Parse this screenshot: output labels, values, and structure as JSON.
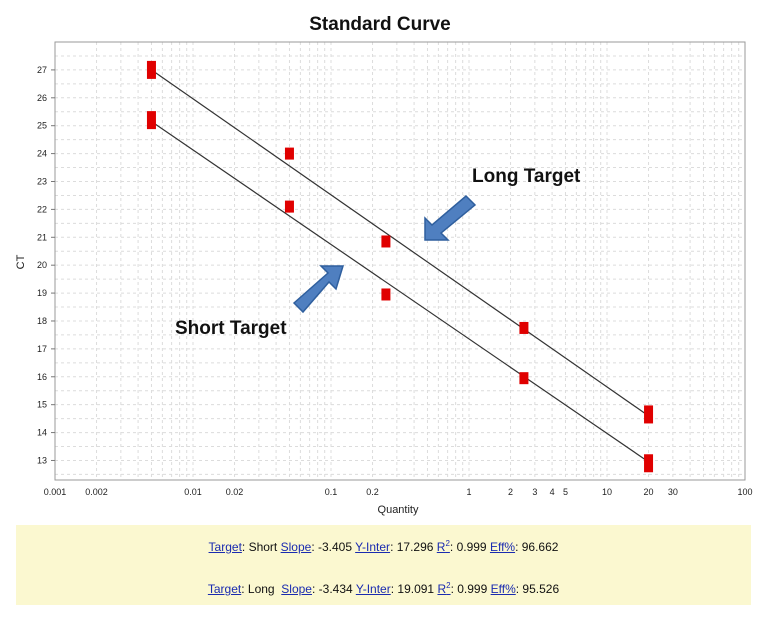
{
  "chart_data": {
    "type": "scatter",
    "title": "Standard Curve",
    "xlabel": "Quantity",
    "ylabel": "CT",
    "xscale": "log",
    "xlim": [
      0.001,
      100
    ],
    "ylim": [
      12.3,
      28.0
    ],
    "grid": true,
    "x_tick_labels": [
      "0.001",
      "0.002",
      "0.01",
      "0.02",
      "0.1",
      "0.2",
      "1",
      "2",
      "3",
      "4",
      "5",
      "10",
      "20",
      "30",
      "100"
    ],
    "x_ticks": [
      0.001,
      0.002,
      0.01,
      0.02,
      0.1,
      0.2,
      1,
      2,
      3,
      4,
      5,
      10,
      20,
      30,
      100
    ],
    "y_ticks": [
      13,
      14,
      15,
      16,
      17,
      18,
      19,
      20,
      21,
      22,
      23,
      24,
      25,
      26,
      27
    ],
    "series": [
      {
        "name": "Long Target",
        "color": "#e00000",
        "x": [
          0.005,
          0.05,
          0.25,
          2.5,
          20
        ],
        "y": [
          27.0,
          24.0,
          20.85,
          17.75,
          14.65
        ],
        "fit": [
          [
            0.005,
            27.0
          ],
          [
            20,
            14.6
          ]
        ]
      },
      {
        "name": "Short Target",
        "color": "#e00000",
        "x": [
          0.005,
          0.05,
          0.25,
          2.5,
          20
        ],
        "y": [
          25.2,
          22.1,
          18.95,
          15.95,
          12.9
        ],
        "fit": [
          [
            0.005,
            25.15
          ],
          [
            20,
            12.95
          ]
        ]
      }
    ],
    "annotations": [
      {
        "text": "Long Target",
        "arrow": "down-left"
      },
      {
        "text": "Short Target",
        "arrow": "up-right"
      }
    ]
  },
  "stats": {
    "rows": [
      {
        "target_label": "Target",
        "target": "Short",
        "slope_label": "Slope",
        "slope": "-3.405",
        "yinter_label": "Y-Inter",
        "yinter": "17.296",
        "r2_label": "R",
        "r2_sup": "2",
        "r2": "0.999",
        "eff_label": "Eff%",
        "eff": "96.662"
      },
      {
        "target_label": "Target",
        "target": "Long",
        "slope_label": "Slope",
        "slope": "-3.434",
        "yinter_label": "Y-Inter",
        "yinter": "19.091",
        "r2_label": "R",
        "r2_sup": "2",
        "r2": "0.999",
        "eff_label": "Eff%",
        "eff": "95.526"
      }
    ]
  }
}
